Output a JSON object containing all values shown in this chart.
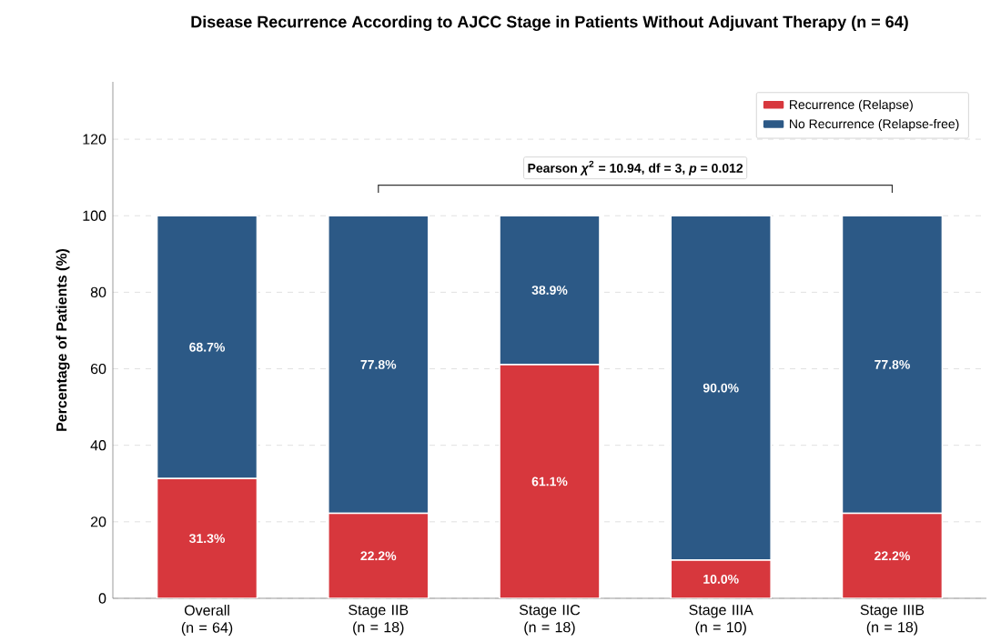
{
  "chart_data": {
    "type": "bar",
    "stacked": true,
    "title": "Disease Recurrence According to AJCC Stage in Patients Without Adjuvant Therapy (n = 64)",
    "ylabel": "Percentage of Patients (%)",
    "categories": [
      "Overall (n = 64)",
      "Stage IIB (n = 18)",
      "Stage IIC (n = 18)",
      "Stage IIIA (n = 10)",
      "Stage IIIB (n = 18)"
    ],
    "series": [
      {
        "name": "Recurrence (Relapse)",
        "color": "#d7373d",
        "values": [
          31.3,
          22.2,
          61.1,
          10.0,
          22.2
        ],
        "value_labels": [
          "31.3%",
          "22.2%",
          "61.1%",
          "10.0%",
          "22.2%"
        ]
      },
      {
        "name": "No Recurrence (Relapse-free)",
        "color": "#2c5986",
        "values": [
          68.7,
          77.8,
          38.9,
          90.0,
          77.8
        ],
        "value_labels": [
          "68.7%",
          "77.8%",
          "38.9%",
          "90.0%",
          "77.8%"
        ]
      }
    ],
    "ylim": [
      0,
      135
    ],
    "yticks": [
      0,
      20,
      40,
      60,
      80,
      100,
      120
    ],
    "grid": "y",
    "legend": "top right",
    "annotations": [
      "Pearson *χ*$^{2}$ = 10.94, df = 3, *p* = 0.012"
    ]
  }
}
